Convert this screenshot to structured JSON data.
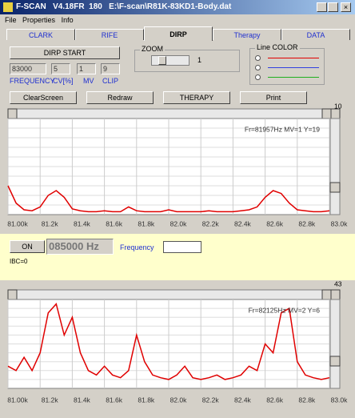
{
  "window_title": "F-SCAN   V4.18FR  180   E:\\F-scan\\R81K-83KD1-Body.dat",
  "menu": [
    "File",
    "Properties",
    "Info"
  ],
  "tabs": [
    "CLARK",
    "RIFE",
    "DIRP",
    "Therapy",
    "DATA"
  ],
  "controls": {
    "start_button": "DIRP START",
    "fields": [
      "83000",
      "5",
      "1",
      "9"
    ],
    "field_labels": [
      "FREQUENCY",
      "CV[%]",
      "MV",
      "CLIP"
    ],
    "zoom_label": "ZOOM",
    "zoom_value": "1",
    "line_color_label": "Line COLOR",
    "buttons": [
      "ClearScreen",
      "Redraw",
      "THERAPY",
      "Print"
    ]
  },
  "generator": {
    "on_button": "ON",
    "frequency_display": "085000 Hz",
    "frequency_label": "Frequency",
    "status": "IBC=0"
  },
  "chart_data": [
    {
      "type": "line",
      "scroll_value": "10",
      "annotation": "Fr=81957Hz MV=1 Y=19",
      "color": "#e00000",
      "xlim": [
        81000,
        83000
      ],
      "ylim": [
        0,
        100
      ],
      "xticks": [
        {
          "value": 81000,
          "label": "81.00k"
        },
        {
          "value": 81200,
          "label": "81.2k"
        },
        {
          "value": 81400,
          "label": "81.4k"
        },
        {
          "value": 81600,
          "label": "81.6k"
        },
        {
          "value": 81800,
          "label": "81.8k"
        },
        {
          "value": 82000,
          "label": "82.0k"
        },
        {
          "value": 82200,
          "label": "82.2k"
        },
        {
          "value": 82400,
          "label": "82.4k"
        },
        {
          "value": 82600,
          "label": "82.6k"
        },
        {
          "value": 82800,
          "label": "82.8k"
        },
        {
          "value": 83000,
          "label": "83.0k"
        }
      ],
      "x": [
        81000,
        81050,
        81100,
        81150,
        81200,
        81250,
        81300,
        81350,
        81400,
        81450,
        81500,
        81550,
        81600,
        81650,
        81700,
        81750,
        81800,
        81850,
        81900,
        81950,
        82000,
        82050,
        82100,
        82150,
        82200,
        82250,
        82300,
        82350,
        82400,
        82450,
        82500,
        82550,
        82600,
        82650,
        82700,
        82750,
        82800,
        82850,
        82900,
        82950,
        83000
      ],
      "values": [
        30,
        12,
        5,
        4,
        8,
        20,
        25,
        18,
        6,
        4,
        3,
        3,
        4,
        3,
        3,
        8,
        4,
        3,
        3,
        3,
        5,
        3,
        3,
        3,
        3,
        4,
        3,
        3,
        3,
        4,
        5,
        8,
        18,
        25,
        22,
        12,
        5,
        4,
        3,
        3,
        4
      ]
    },
    {
      "type": "line",
      "scroll_value": "43",
      "annotation": "Fr=82125Hz MV=2 Y=6",
      "color": "#e00000",
      "xlim": [
        81000,
        83000
      ],
      "ylim": [
        0,
        100
      ],
      "xticks": [
        {
          "value": 81000,
          "label": "81.00k"
        },
        {
          "value": 81200,
          "label": "81.2k"
        },
        {
          "value": 81400,
          "label": "81.4k"
        },
        {
          "value": 81600,
          "label": "81.6k"
        },
        {
          "value": 81800,
          "label": "81.8k"
        },
        {
          "value": 82000,
          "label": "82.0k"
        },
        {
          "value": 82200,
          "label": "82.2k"
        },
        {
          "value": 82400,
          "label": "82.4k"
        },
        {
          "value": 82600,
          "label": "82.6k"
        },
        {
          "value": 82800,
          "label": "82.8k"
        },
        {
          "value": 83000,
          "label": "83.0k"
        }
      ],
      "x": [
        81000,
        81050,
        81100,
        81150,
        81200,
        81250,
        81300,
        81350,
        81400,
        81450,
        81500,
        81550,
        81600,
        81650,
        81700,
        81750,
        81800,
        81850,
        81900,
        81950,
        82000,
        82050,
        82100,
        82150,
        82200,
        82250,
        82300,
        82350,
        82400,
        82450,
        82500,
        82550,
        82600,
        82650,
        82700,
        82750,
        82800,
        82850,
        82900,
        82950,
        83000
      ],
      "values": [
        25,
        20,
        35,
        20,
        40,
        85,
        95,
        60,
        80,
        40,
        20,
        15,
        25,
        15,
        12,
        20,
        60,
        30,
        15,
        12,
        10,
        15,
        25,
        12,
        10,
        12,
        15,
        10,
        12,
        15,
        25,
        20,
        50,
        40,
        85,
        90,
        30,
        15,
        12,
        10,
        12
      ]
    }
  ]
}
